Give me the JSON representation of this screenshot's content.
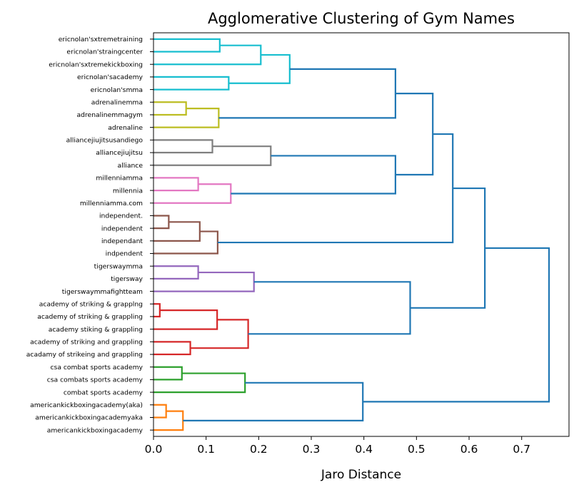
{
  "chart_data": {
    "type": "dendrogram",
    "title": "Agglomerative Clustering of Gym Names",
    "xlabel": "Jaro Distance",
    "ylabel": "",
    "orientation": "left",
    "xlim": [
      0,
      0.79
    ],
    "xticks": [
      0.0,
      0.1,
      0.2,
      0.3,
      0.4,
      0.5,
      0.6,
      0.7
    ],
    "xtick_labels": [
      "0.0",
      "0.1",
      "0.2",
      "0.3",
      "0.4",
      "0.5",
      "0.6",
      "0.7"
    ],
    "grid": false,
    "above_threshold_color": "#1f77b4",
    "leaves": [
      "ericnolan'sxtremetraining",
      "ericnolan'straingcenter",
      "ericnolan'sxtremekickboxing",
      "ericnolan'sacademy",
      "ericnolan'smma",
      "adrenalinemma",
      "adrenalinemmagym",
      "adrenaline",
      "alliancejiujitsusandiego",
      "alliancejiujitsu",
      "alliance",
      "millenniamma",
      "millennia",
      "millenniamma.com",
      "independent.",
      "independent",
      "independant",
      "indpendent",
      "tigerswaymma",
      "tigersway",
      "tigerswaymmafightteam",
      "academy of striking & grapplng",
      "academy of striking & grappling",
      "academy stiking & grappling",
      "academy of striking and grappling",
      "acadamy of strikeing and grappling",
      "csa combat sports academy",
      "csa combats sports academy",
      "combat sports academy",
      "americankickboxingacademy(aka)",
      "americankickboxingacademyaka",
      "americankickboxingacademy"
    ],
    "merges": [
      {
        "left": "L0",
        "right": "L1",
        "height": 0.126,
        "color": "#17becf"
      },
      {
        "left": "M0",
        "right": "L2",
        "height": 0.204,
        "color": "#17becf"
      },
      {
        "left": "L3",
        "right": "L4",
        "height": 0.143,
        "color": "#17becf"
      },
      {
        "left": "M1",
        "right": "M2",
        "height": 0.259,
        "color": "#17becf"
      },
      {
        "left": "L5",
        "right": "L6",
        "height": 0.062,
        "color": "#bcbd22"
      },
      {
        "left": "M4",
        "right": "L7",
        "height": 0.124,
        "color": "#bcbd22"
      },
      {
        "left": "M3",
        "right": "M5",
        "height": 0.46,
        "color": "#1f77b4"
      },
      {
        "left": "L8",
        "right": "L9",
        "height": 0.112,
        "color": "#7f7f7f"
      },
      {
        "left": "M7",
        "right": "L10",
        "height": 0.223,
        "color": "#7f7f7f"
      },
      {
        "left": "L11",
        "right": "L12",
        "height": 0.085,
        "color": "#e377c2"
      },
      {
        "left": "M9",
        "right": "L13",
        "height": 0.147,
        "color": "#e377c2"
      },
      {
        "left": "M8",
        "right": "M10",
        "height": 0.46,
        "color": "#1f77b4"
      },
      {
        "left": "M6",
        "right": "M11",
        "height": 0.531,
        "color": "#1f77b4"
      },
      {
        "left": "L14",
        "right": "L15",
        "height": 0.029,
        "color": "#8c564b"
      },
      {
        "left": "M13",
        "right": "L16",
        "height": 0.088,
        "color": "#8c564b"
      },
      {
        "left": "M14",
        "right": "L17",
        "height": 0.122,
        "color": "#8c564b"
      },
      {
        "left": "M12",
        "right": "M15",
        "height": 0.569,
        "color": "#1f77b4"
      },
      {
        "left": "L18",
        "right": "L19",
        "height": 0.085,
        "color": "#9467bd"
      },
      {
        "left": "M17",
        "right": "L20",
        "height": 0.191,
        "color": "#9467bd"
      },
      {
        "left": "L21",
        "right": "L22",
        "height": 0.012,
        "color": "#d62728"
      },
      {
        "left": "M19",
        "right": "L23",
        "height": 0.121,
        "color": "#d62728"
      },
      {
        "left": "L24",
        "right": "L25",
        "height": 0.07,
        "color": "#d62728"
      },
      {
        "left": "M20",
        "right": "M21",
        "height": 0.18,
        "color": "#d62728"
      },
      {
        "left": "M18",
        "right": "M22",
        "height": 0.488,
        "color": "#1f77b4"
      },
      {
        "left": "M16",
        "right": "M23",
        "height": 0.63,
        "color": "#1f77b4"
      },
      {
        "left": "L26",
        "right": "L27",
        "height": 0.054,
        "color": "#2ca02c"
      },
      {
        "left": "M25",
        "right": "L28",
        "height": 0.174,
        "color": "#2ca02c"
      },
      {
        "left": "L29",
        "right": "L30",
        "height": 0.024,
        "color": "#ff7f0e"
      },
      {
        "left": "M27",
        "right": "L31",
        "height": 0.056,
        "color": "#ff7f0e"
      },
      {
        "left": "M26",
        "right": "M28",
        "height": 0.398,
        "color": "#1f77b4"
      },
      {
        "left": "M24",
        "right": "M29",
        "height": 0.752,
        "color": "#1f77b4"
      }
    ]
  }
}
